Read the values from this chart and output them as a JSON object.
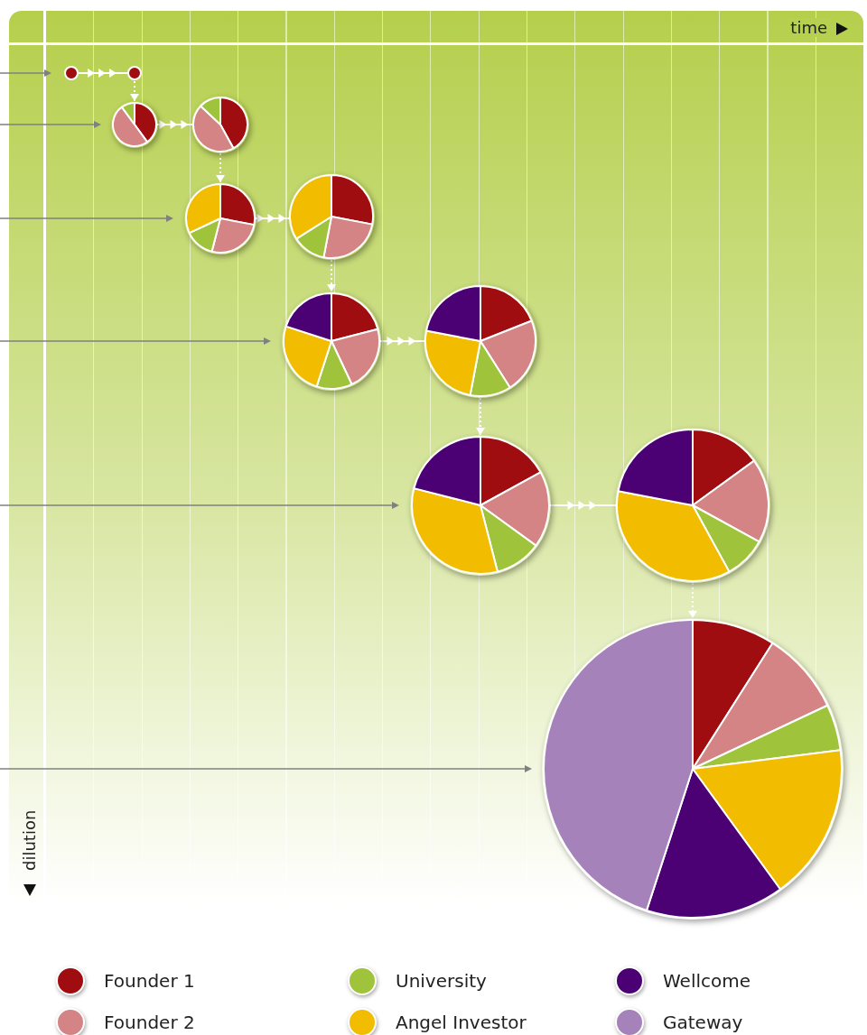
{
  "chart_data": [
    {
      "type": "pie",
      "categories": [
        null,
        null,
        null
      ],
      "values": [
        40,
        50,
        10
      ],
      "colors": [
        "#a00d10",
        "#d48484",
        "#9fc33a"
      ]
    },
    {
      "type": "pie",
      "categories": [
        null,
        null,
        null
      ],
      "values": [
        42,
        45,
        13
      ],
      "colors": [
        "#a00d10",
        "#d48484",
        "#9fc33a"
      ]
    },
    {
      "type": "pie",
      "categories": [
        null,
        null,
        null,
        null
      ],
      "values": [
        28,
        26,
        14,
        32
      ],
      "colors": [
        "#a00d10",
        "#d48484",
        "#9fc33a",
        "#f2bc00"
      ]
    },
    {
      "type": "pie",
      "categories": [
        null,
        null,
        null,
        null
      ],
      "values": [
        28,
        25,
        13,
        34
      ],
      "colors": [
        "#a00d10",
        "#d48484",
        "#9fc33a",
        "#f2bc00"
      ]
    },
    {
      "type": "pie",
      "categories": [
        null,
        null,
        null,
        null,
        null
      ],
      "values": [
        21,
        22,
        12,
        25,
        20
      ],
      "colors": [
        "#a00d10",
        "#d48484",
        "#9fc33a",
        "#f2bc00",
        "#4b0074"
      ]
    },
    {
      "type": "pie",
      "categories": [
        null,
        null,
        null,
        null,
        null
      ],
      "values": [
        19,
        22,
        12,
        25,
        22
      ],
      "colors": [
        "#a00d10",
        "#d48484",
        "#9fc33a",
        "#f2bc00",
        "#4b0074"
      ]
    },
    {
      "type": "pie",
      "categories": [
        null,
        null,
        null,
        null,
        null
      ],
      "values": [
        17,
        18,
        11,
        33,
        21
      ],
      "colors": [
        "#a00d10",
        "#d48484",
        "#9fc33a",
        "#f2bc00",
        "#4b0074"
      ]
    },
    {
      "type": "pie",
      "categories": [
        null,
        null,
        null,
        null,
        null
      ],
      "values": [
        15,
        18,
        9,
        36,
        22
      ],
      "colors": [
        "#a00d10",
        "#d48484",
        "#9fc33a",
        "#f2bc00",
        "#4b0074"
      ]
    },
    {
      "type": "pie",
      "categories": [
        "Founder 1",
        "Founder 2",
        "University",
        "Angel Investor",
        "Wellcome",
        "Gateway"
      ],
      "values": [
        9,
        9,
        5,
        17,
        15,
        45
      ],
      "colors": [
        "#a00d10",
        "#d48484",
        "#9fc33a",
        "#f2bc00",
        "#4b0074",
        "#a682bb"
      ],
      "legend": "bottom",
      "xlabel": "time",
      "ylabel": "dilution"
    }
  ]
}
